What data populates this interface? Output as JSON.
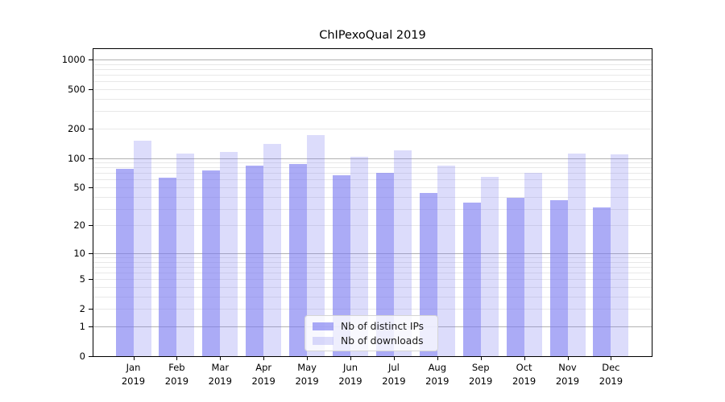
{
  "chart_data": {
    "type": "bar",
    "title": "ChIPexoQual 2019",
    "categories": [
      "Jan 2019",
      "Feb 2019",
      "Mar 2019",
      "Apr 2019",
      "May 2019",
      "Jun 2019",
      "Jul 2019",
      "Aug 2019",
      "Sep 2019",
      "Oct 2019",
      "Nov 2019",
      "Dec 2019"
    ],
    "series": [
      {
        "name": "Nb of distinct IPs",
        "color": "rgba(120,120,240,0.62)",
        "values": [
          78,
          63,
          75,
          84,
          86,
          67,
          71,
          44,
          35,
          39,
          37,
          31
        ]
      },
      {
        "name": "Nb of downloads",
        "color": "rgba(120,120,240,0.26)",
        "values": [
          149,
          110,
          116,
          139,
          170,
          103,
          120,
          83,
          64,
          70,
          111,
          108
        ]
      }
    ],
    "yscale": "log1p",
    "yticks": [
      0,
      1,
      2,
      5,
      10,
      20,
      50,
      100,
      200,
      500,
      1000
    ],
    "ylim": [
      0,
      1300
    ],
    "xlabel": "",
    "ylabel": "",
    "grid": true,
    "legend_position": "lower center"
  },
  "legend": {
    "items": [
      {
        "label": "Nb of distinct IPs"
      },
      {
        "label": "Nb of downloads"
      }
    ]
  },
  "colors": {
    "bar_dark": "rgba(120,120,240,0.62)",
    "bar_light": "rgba(120,120,240,0.26)",
    "grid_major": "#b2b2b2",
    "grid_minor": "#e8e8e8",
    "axis": "#000000",
    "text": "#000000"
  }
}
